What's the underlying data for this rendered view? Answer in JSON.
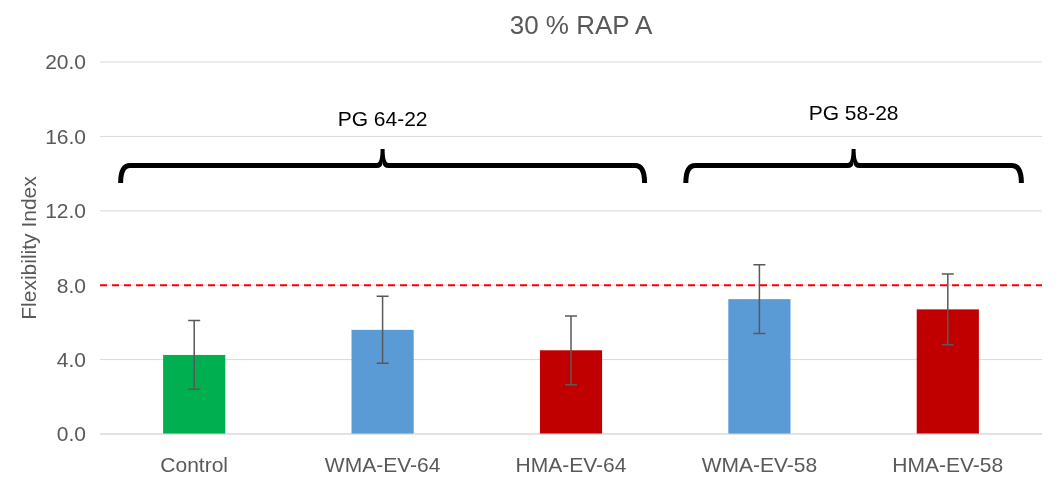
{
  "chart_data": {
    "type": "bar",
    "title": "30 % RAP A",
    "ylabel": "Flexibility Index",
    "categories": [
      "Control",
      "WMA-EV-64",
      "HMA-EV-64",
      "WMA-EV-58",
      "HMA-EV-58"
    ],
    "values": [
      4.25,
      5.6,
      4.5,
      7.25,
      6.7
    ],
    "colors": [
      "#00b050",
      "#5b9bd5",
      "#c00000",
      "#5b9bd5",
      "#c00000"
    ],
    "errors": [
      1.85,
      1.8,
      1.85,
      1.85,
      1.9
    ],
    "ylim": [
      0,
      20
    ],
    "yticks": [
      {
        "value": 0,
        "label": "0.0"
      },
      {
        "value": 4,
        "label": "4.0"
      },
      {
        "value": 8,
        "label": "8.0"
      },
      {
        "value": 12,
        "label": "12.0"
      },
      {
        "value": 16,
        "label": "16.0"
      },
      {
        "value": 20,
        "label": "20.0"
      }
    ],
    "grid": "y",
    "ref_lines": [
      {
        "axis": "y",
        "value": 8,
        "color": "#ff0000",
        "line_style": "dashed"
      }
    ],
    "annotations": [
      "PG 64-22",
      "PG 58-28"
    ]
  }
}
